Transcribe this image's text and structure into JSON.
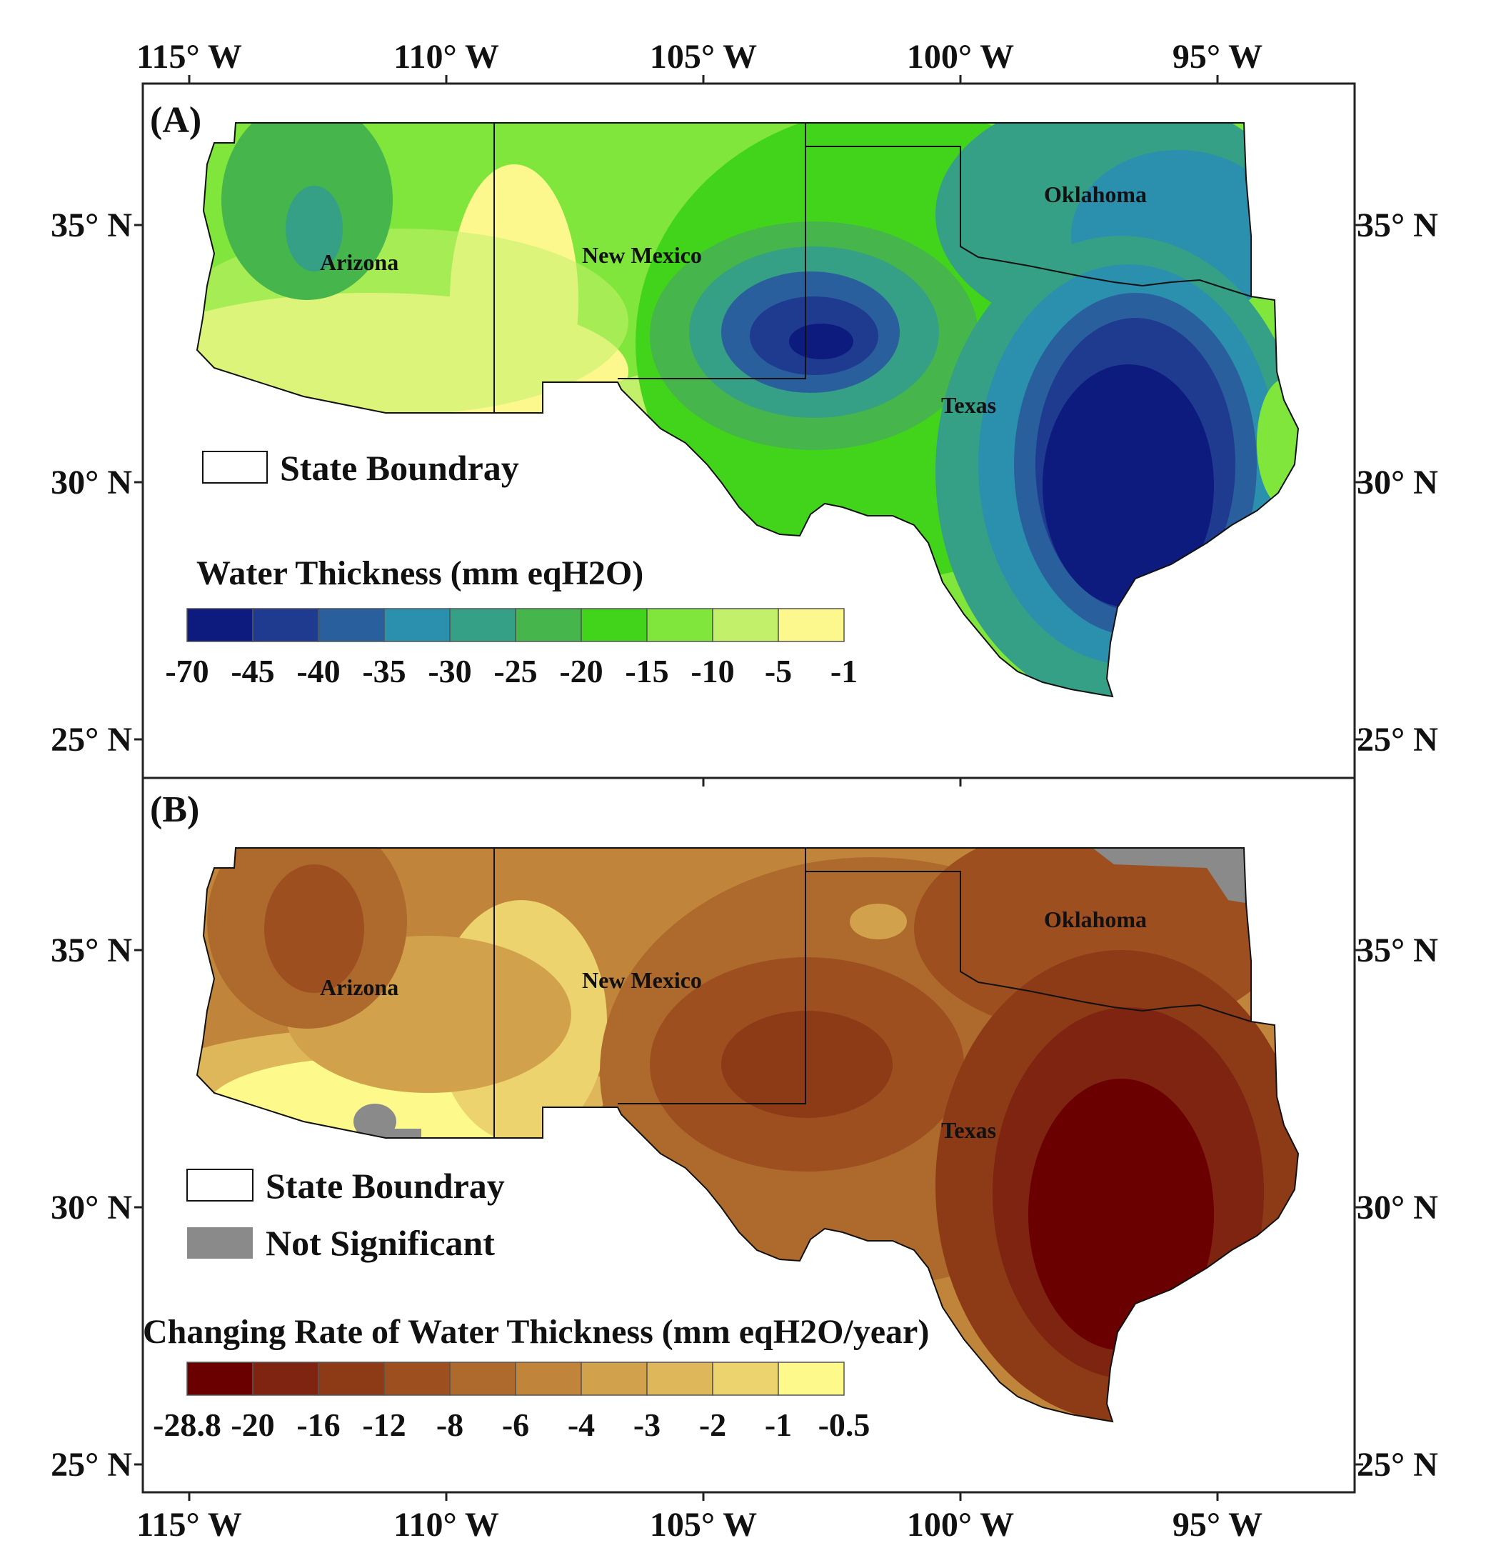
{
  "figure": {
    "top_axis_labels": [
      "115° W",
      "110° W",
      "105° W",
      "100° W",
      "95° W"
    ],
    "bottom_axis_labels": [
      "115° W",
      "110° W",
      "105° W",
      "100° W",
      "95° W"
    ],
    "left_axis_labels_a": [
      "35° N",
      "30° N",
      "25° N"
    ],
    "right_axis_labels_a": [
      "35° N",
      "30° N",
      "25° N"
    ],
    "left_axis_labels_b": [
      "35° N",
      "30° N",
      "25° N"
    ],
    "right_axis_labels_b": [
      "35° N",
      "30° N",
      "25° N"
    ]
  },
  "panels": [
    {
      "label": "(A)",
      "states": [
        "Arizona",
        "New Mexico",
        "Oklahoma",
        "Texas"
      ],
      "legend": [
        {
          "label": "State Boundray",
          "swatch": "#ffffff"
        }
      ],
      "colorbar": {
        "title": "Water Thickness (mm eqH2O)",
        "ticks": [
          "-70",
          "-45",
          "-40",
          "-35",
          "-30",
          "-25",
          "-20",
          "-15",
          "-10",
          "-5",
          "-1"
        ],
        "colors": [
          "#0d1a7e",
          "#1f3b8f",
          "#2a5f9d",
          "#2b8fae",
          "#35a085",
          "#45b54c",
          "#42d41a",
          "#80e63c",
          "#c2f06a",
          "#fdf88e"
        ]
      }
    },
    {
      "label": "(B)",
      "states": [
        "Arizona",
        "New Mexico",
        "Oklahoma",
        "Texas"
      ],
      "legend": [
        {
          "label": "State Boundray",
          "swatch": "#ffffff"
        },
        {
          "label": "Not Significant",
          "swatch": "#8a8a8a"
        }
      ],
      "colorbar": {
        "title": "Changing Rate of Water Thickness (mm eqH2O/year)",
        "ticks": [
          "-28.8",
          "-20",
          "-16",
          "-12",
          "-8",
          "-6",
          "-4",
          "-3",
          "-2",
          "-1",
          "-0.5"
        ],
        "colors": [
          "#6b0000",
          "#7f2410",
          "#8d3a17",
          "#9d4f20",
          "#ae6a2c",
          "#c0853a",
          "#d1a14c",
          "#ddb75a",
          "#ecd36e",
          "#fdf98a"
        ]
      }
    }
  ]
}
